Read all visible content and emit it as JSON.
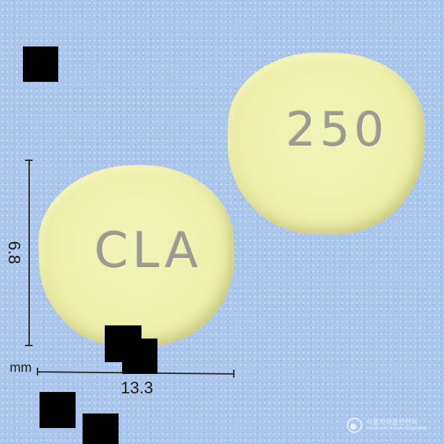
{
  "pills": {
    "left_imprint": "CLA",
    "right_imprint": "250",
    "color": "#eef0ac"
  },
  "dimensions": {
    "width_value": "13.3",
    "height_value": "6.8",
    "unit": "mm"
  },
  "watermark": {
    "korean": "식품의약품안전처",
    "english": "Ministry of Food and Drug Safety"
  },
  "colors": {
    "background": "#aac6ec",
    "mask": "#000000"
  }
}
